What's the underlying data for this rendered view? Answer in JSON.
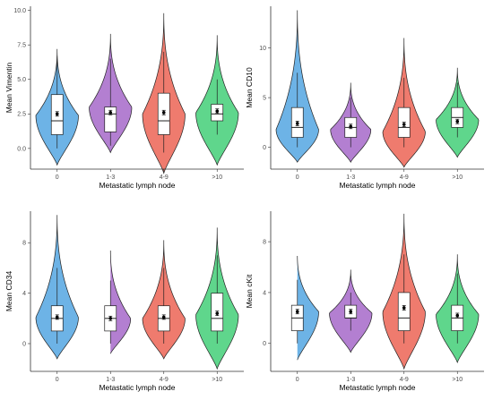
{
  "colors": {
    "0": "#6db3e6",
    "1-3": "#b37fd1",
    "4-9": "#ef7b6e",
    ">10": "#5fd68c",
    "axis": "#333333"
  },
  "chart_data": [
    {
      "type": "violin",
      "ylabel": "Mean Vimentin",
      "xlabel": "Metastatic lymph node",
      "categories": [
        "0",
        "1-3",
        "4-9",
        ">10"
      ],
      "yticks": [
        0.0,
        2.5,
        5.0,
        7.5,
        10.0
      ],
      "ytick_labels": [
        "0.0",
        "2.5",
        "5.0",
        "7.5",
        "10.0"
      ],
      "ylim": [
        -1.5,
        10.3
      ],
      "violins": [
        {
          "min": -1.2,
          "max": 7.2,
          "mode": 2.4,
          "width": 0.95,
          "q1": 1.0,
          "median": 2.0,
          "q3": 3.9,
          "whisker_low": 0.0,
          "whisker_high": 6.7,
          "mean": 2.5
        },
        {
          "min": -0.3,
          "max": 8.3,
          "mode": 3.0,
          "width": 0.95,
          "q1": 1.2,
          "median": 2.5,
          "q3": 3.0,
          "whisker_low": 0.2,
          "whisker_high": 6.5,
          "mean": 2.6
        },
        {
          "min": -1.8,
          "max": 9.8,
          "mode": 2.5,
          "width": 0.95,
          "q1": 1.0,
          "median": 2.0,
          "q3": 4.0,
          "whisker_low": -0.3,
          "whisker_high": 7.0,
          "mean": 2.6
        },
        {
          "min": -1.2,
          "max": 8.2,
          "mode": 2.6,
          "width": 0.95,
          "q1": 2.0,
          "median": 2.5,
          "q3": 3.2,
          "whisker_low": 1.0,
          "whisker_high": 5.0,
          "mean": 2.7
        }
      ]
    },
    {
      "type": "violin",
      "ylabel": "Mean CD10",
      "xlabel": "Metastatic lymph node",
      "categories": [
        "0",
        "1-3",
        "4-9",
        ">10"
      ],
      "yticks": [
        0,
        5,
        10
      ],
      "ytick_labels": [
        "0",
        "5",
        "10"
      ],
      "ylim": [
        -2.2,
        14.2
      ],
      "violins": [
        {
          "min": -1.5,
          "max": 13.8,
          "mode": 1.8,
          "width": 0.95,
          "q1": 1.0,
          "median": 2.0,
          "q3": 4.0,
          "whisker_low": 0.0,
          "whisker_high": 7.5,
          "mean": 2.4
        },
        {
          "min": -1.5,
          "max": 6.5,
          "mode": 1.8,
          "width": 0.9,
          "q1": 1.0,
          "median": 2.0,
          "q3": 3.0,
          "whisker_low": 0.0,
          "whisker_high": 5.0,
          "mean": 2.1
        },
        {
          "min": -2.0,
          "max": 11.0,
          "mode": 1.6,
          "width": 0.95,
          "q1": 1.0,
          "median": 2.0,
          "q3": 4.0,
          "whisker_low": 0.0,
          "whisker_high": 7.0,
          "mean": 2.3
        },
        {
          "min": -1.0,
          "max": 8.0,
          "mode": 2.8,
          "width": 0.95,
          "q1": 2.0,
          "median": 3.0,
          "q3": 4.0,
          "whisker_low": 1.0,
          "whisker_high": 6.5,
          "mean": 2.6
        }
      ]
    },
    {
      "type": "violin",
      "ylabel": "Mean CD34",
      "xlabel": "Metastatic lymph node",
      "categories": [
        "0",
        "1-3",
        "4-9",
        ">10"
      ],
      "yticks": [
        0,
        4,
        8
      ],
      "ytick_labels": [
        "0",
        "4",
        "8"
      ],
      "ylim": [
        -2.2,
        10.5
      ],
      "violins": [
        {
          "min": -1.2,
          "max": 10.2,
          "mode": 2.1,
          "width": 0.95,
          "q1": 1.0,
          "median": 2.0,
          "q3": 3.0,
          "whisker_low": 0.0,
          "whisker_high": 6.0,
          "mean": 2.1
        },
        {
          "min": -0.8,
          "max": 7.5,
          "mode": 2.0,
          "width": 0.9,
          "q1": 1.0,
          "median": 2.0,
          "q3": 3.0,
          "whisker_low": 0.0,
          "whisker_high": 5.0,
          "mean": 2.0
        },
        {
          "min": -1.2,
          "max": 8.2,
          "mode": 2.0,
          "width": 0.95,
          "q1": 1.0,
          "median": 2.0,
          "q3": 3.0,
          "whisker_low": 0.0,
          "whisker_high": 6.0,
          "mean": 2.1
        },
        {
          "min": -2.0,
          "max": 9.2,
          "mode": 2.3,
          "width": 0.95,
          "q1": 1.0,
          "median": 2.0,
          "q3": 4.0,
          "whisker_low": 0.0,
          "whisker_high": 7.0,
          "mean": 2.4
        }
      ]
    },
    {
      "type": "violin",
      "ylabel": "Mean cKit",
      "xlabel": "Metastatic lymph node",
      "categories": [
        "0",
        "1-3",
        "4-9",
        ">10"
      ],
      "yticks": [
        0,
        4,
        8
      ],
      "ytick_labels": [
        "0",
        "4",
        "8"
      ],
      "ylim": [
        -2.2,
        10.4
      ],
      "violins": [
        {
          "min": -1.3,
          "max": 7.0,
          "mode": 2.5,
          "width": 0.95,
          "q1": 1.0,
          "median": 2.0,
          "q3": 3.0,
          "whisker_low": 0.0,
          "whisker_high": 5.0,
          "mean": 2.5
        },
        {
          "min": -0.7,
          "max": 5.8,
          "mode": 2.4,
          "width": 0.95,
          "q1": 2.0,
          "median": 2.0,
          "q3": 3.0,
          "whisker_low": 1.0,
          "whisker_high": 4.0,
          "mean": 2.5
        },
        {
          "min": -2.0,
          "max": 10.2,
          "mode": 2.5,
          "width": 0.95,
          "q1": 1.0,
          "median": 2.0,
          "q3": 4.0,
          "whisker_low": 0.0,
          "whisker_high": 7.0,
          "mean": 2.8
        },
        {
          "min": -1.5,
          "max": 7.0,
          "mode": 2.3,
          "width": 0.95,
          "q1": 1.0,
          "median": 2.0,
          "q3": 3.0,
          "whisker_low": 0.0,
          "whisker_high": 5.5,
          "mean": 2.2
        }
      ]
    }
  ]
}
